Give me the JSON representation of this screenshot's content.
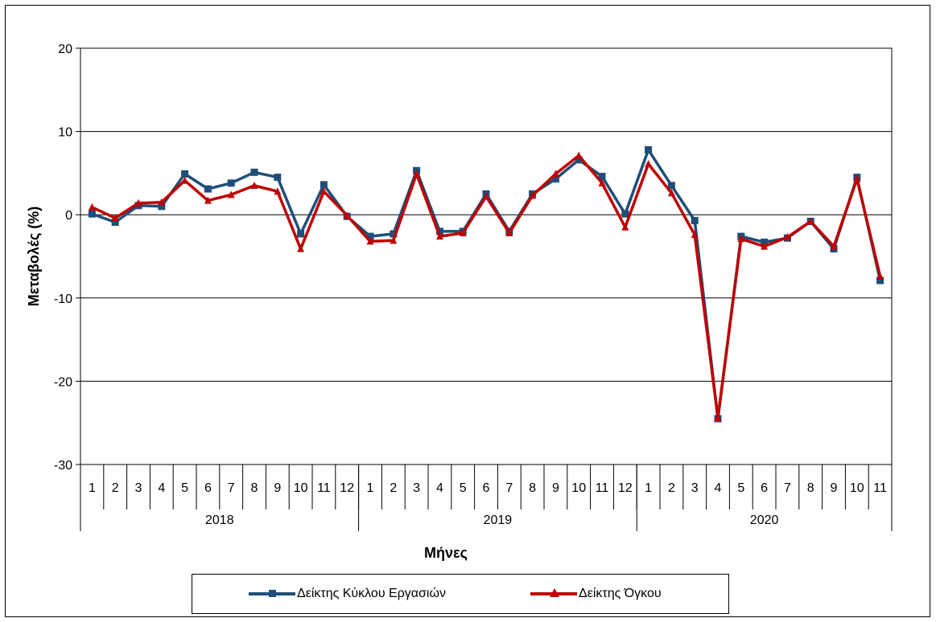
{
  "chart_data": {
    "type": "line",
    "title": "",
    "ylabel": "Μεταβολές  (%)",
    "xlabel": "Μήνες",
    "ylim": [
      -30,
      20
    ],
    "yticks": [
      20,
      10,
      0,
      -10,
      -20,
      -30
    ],
    "ytick_labels": [
      "20",
      "10",
      "0",
      "-10",
      "-20",
      "-30"
    ],
    "grid": true,
    "legend_position": "bottom",
    "years": [
      {
        "label": "2018",
        "months": [
          "1",
          "2",
          "3",
          "4",
          "5",
          "6",
          "7",
          "8",
          "9",
          "10",
          "11",
          "12"
        ]
      },
      {
        "label": "2019",
        "months": [
          "1",
          "2",
          "3",
          "4",
          "5",
          "6",
          "7",
          "8",
          "9",
          "10",
          "11",
          "12"
        ]
      },
      {
        "label": "2020",
        "months": [
          "1",
          "2",
          "3",
          "4",
          "5",
          "6",
          "7",
          "8",
          "9",
          "10",
          "11"
        ]
      }
    ],
    "series": [
      {
        "name": "Δείκτης Κύκλου Εργασιών",
        "color": "#1f4e79",
        "marker": "square",
        "values": [
          0.1,
          -0.9,
          1.1,
          1.0,
          4.9,
          3.1,
          3.8,
          5.1,
          4.5,
          -2.3,
          3.6,
          -0.2,
          -2.6,
          -2.3,
          5.3,
          -2.0,
          -2.0,
          2.5,
          -2.0,
          2.5,
          4.3,
          6.6,
          4.6,
          0.1,
          7.8,
          3.5,
          -0.7,
          -24.5,
          -2.6,
          -3.3,
          -2.8,
          -0.8,
          -4.1,
          4.5,
          -7.9
        ]
      },
      {
        "name": "Δείκτης Όγκου",
        "color": "#c00000",
        "marker": "triangle",
        "values": [
          0.9,
          -0.4,
          1.4,
          1.5,
          4.1,
          1.7,
          2.4,
          3.5,
          2.8,
          -4.1,
          2.8,
          -0.1,
          -3.2,
          -3.1,
          4.9,
          -2.6,
          -2.2,
          2.2,
          -2.2,
          2.3,
          4.9,
          7.1,
          3.8,
          -1.5,
          6.1,
          2.6,
          -2.4,
          -24.4,
          -2.9,
          -3.8,
          -2.7,
          -0.8,
          -3.8,
          4.3,
          -7.4
        ]
      }
    ]
  }
}
